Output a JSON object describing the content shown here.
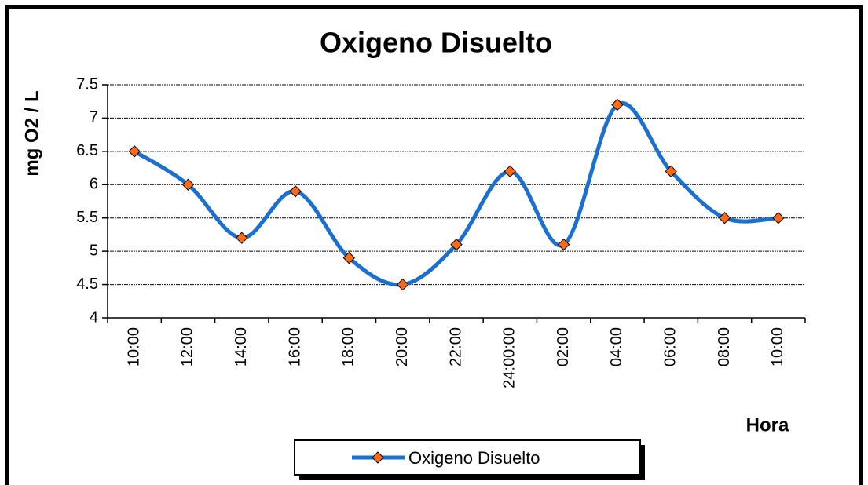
{
  "chart_data": {
    "type": "line",
    "title": "Oxigeno Disuelto",
    "ylabel": "mg O2 / L",
    "xlabel": "Hora",
    "categories": [
      "10:00",
      "12:00",
      "14:00",
      "16:00",
      "18:00",
      "20:00",
      "22:00",
      "24:00:00",
      "02:00",
      "04:00",
      "06:00",
      "08:00",
      "10:00"
    ],
    "series": [
      {
        "name": "Oxigeno Disuelto",
        "color": "#1a6fd1",
        "marker_color": "#ff6a13",
        "values": [
          6.5,
          6.0,
          5.2,
          5.9,
          4.9,
          4.5,
          5.1,
          6.2,
          5.1,
          7.2,
          6.2,
          5.5,
          5.5
        ]
      }
    ],
    "ylim": [
      4,
      7.5
    ],
    "yticks": [
      4,
      4.5,
      5,
      5.5,
      6,
      6.5,
      7,
      7.5
    ],
    "grid": true,
    "legend": "bottom"
  }
}
